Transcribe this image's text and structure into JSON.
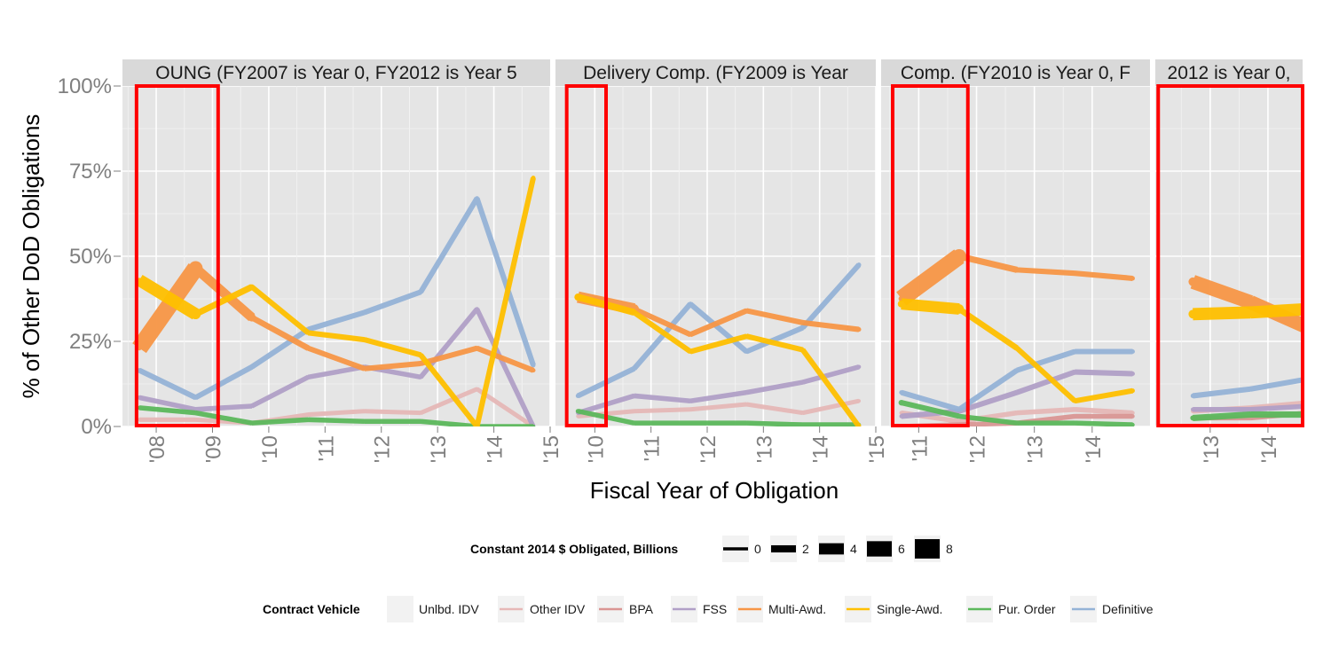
{
  "chart_data": {
    "type": "line",
    "ylabel": "% of  Other DoD  Obligations",
    "xlabel": "Fiscal Year of Obligation",
    "ylim": [
      0,
      1
    ],
    "y_ticks": [
      "0%",
      "25%",
      "50%",
      "75%",
      "100%"
    ],
    "grid": true,
    "legend_position": "bottom",
    "size_legend": {
      "title": "Constant 2014 $ Obligated, Billions",
      "values": [
        "0",
        "2",
        "4",
        "6",
        "8"
      ]
    },
    "color_legend": {
      "title": "Contract Vehicle",
      "entries": [
        {
          "name": "Unlbd. IDV",
          "color": "#f2f2f2"
        },
        {
          "name": "Other IDV",
          "color": "#e6b8b7"
        },
        {
          "name": "BPA",
          "color": "#da9694"
        },
        {
          "name": "FSS",
          "color": "#b1a0c7"
        },
        {
          "name": "Multi-Awd.",
          "color": "#f79646"
        },
        {
          "name": "Single-Awd.",
          "color": "#ffc000"
        },
        {
          "name": "Pur. Order",
          "color": "#5cb85c"
        },
        {
          "name": "Definitive",
          "color": "#95b3d7"
        }
      ]
    },
    "panels": [
      {
        "strip": "OUNG (FY2007 is Year 0, FY2012 is Year 5",
        "xlim": [
          2007.4,
          2015.0
        ],
        "x_ticks": [
          "'08",
          "'09",
          "'10",
          "'11",
          "'12",
          "'13",
          "'14",
          "'15"
        ],
        "x_tick_values": [
          2008,
          2009,
          2010,
          2011,
          2012,
          2013,
          2014,
          2015
        ],
        "highlight_x": [
          2007.65,
          2009.1
        ],
        "series": [
          {
            "name": "Other IDV",
            "x": [
              2007.7,
              2008.7,
              2009.7,
              2010.7,
              2011.7,
              2012.7,
              2013.7,
              2014.7
            ],
            "y": [
              0.02,
              0.02,
              0.01,
              0.035,
              0.045,
              0.04,
              0.11,
              0.0
            ],
            "w": [
              0.1,
              0.1,
              0.1,
              0.1,
              0.1,
              0.1,
              0.1,
              0.1
            ]
          },
          {
            "name": "FSS",
            "x": [
              2007.7,
              2008.7,
              2009.7,
              2010.7,
              2011.7,
              2012.7,
              2013.7,
              2014.7
            ],
            "y": [
              0.085,
              0.05,
              0.06,
              0.145,
              0.175,
              0.145,
              0.345,
              0.0
            ],
            "w": [
              0.2,
              0.2,
              0.2,
              0.2,
              0.2,
              0.2,
              0.2,
              0.2
            ]
          },
          {
            "name": "Definitive",
            "x": [
              2007.7,
              2008.7,
              2009.7,
              2010.7,
              2011.7,
              2012.7,
              2013.7,
              2014.7
            ],
            "y": [
              0.165,
              0.085,
              0.175,
              0.285,
              0.335,
              0.395,
              0.67,
              0.18
            ],
            "w": [
              0.3,
              0.3,
              0.3,
              0.3,
              0.3,
              0.3,
              0.3,
              0.3
            ]
          },
          {
            "name": "Pur. Order",
            "x": [
              2007.7,
              2008.7,
              2009.7,
              2010.7,
              2011.7,
              2012.7,
              2013.7,
              2014.7
            ],
            "y": [
              0.055,
              0.04,
              0.01,
              0.02,
              0.015,
              0.015,
              0.0,
              0.0
            ],
            "w": [
              0.2,
              0.2,
              0.2,
              0.2,
              0.2,
              0.2,
              0.2,
              0.2
            ]
          },
          {
            "name": "Multi-Awd.",
            "x": [
              2007.7,
              2008.7,
              2009.7,
              2010.7,
              2011.7,
              2012.7,
              2013.7,
              2014.7
            ],
            "y": [
              0.23,
              0.465,
              0.32,
              0.23,
              0.17,
              0.185,
              0.23,
              0.165
            ],
            "w": [
              0.3,
              2.8,
              1.2,
              0.4,
              0.3,
              0.3,
              0.3,
              0.3
            ]
          },
          {
            "name": "Single-Awd.",
            "x": [
              2007.7,
              2008.7,
              2009.7,
              2010.7,
              2011.7,
              2012.7,
              2013.7,
              2014.7
            ],
            "y": [
              0.43,
              0.33,
              0.41,
              0.275,
              0.255,
              0.21,
              0.0,
              0.73
            ],
            "w": [
              0.3,
              1.8,
              0.5,
              0.3,
              0.3,
              0.3,
              0.3,
              0.3
            ]
          }
        ]
      },
      {
        "strip": "Delivery Comp. (FY2009 is Year",
        "xlim": [
          2009.3,
          2015.0
        ],
        "x_ticks": [
          "'10",
          "'11",
          "'12",
          "'13",
          "'14",
          "'15"
        ],
        "x_tick_values": [
          2010,
          2011,
          2012,
          2013,
          2014,
          2015
        ],
        "highlight_x": [
          2009.5,
          2010.2
        ],
        "series": [
          {
            "name": "Other IDV",
            "x": [
              2009.7,
              2010.7,
              2011.7,
              2012.7,
              2013.7,
              2014.7
            ],
            "y": [
              0.03,
              0.045,
              0.05,
              0.065,
              0.04,
              0.075
            ],
            "w": [
              0.1,
              0.1,
              0.1,
              0.1,
              0.1,
              0.1
            ]
          },
          {
            "name": "FSS",
            "x": [
              2009.7,
              2010.7,
              2011.7,
              2012.7,
              2013.7,
              2014.7
            ],
            "y": [
              0.04,
              0.09,
              0.075,
              0.1,
              0.13,
              0.175
            ],
            "w": [
              0.2,
              0.2,
              0.2,
              0.2,
              0.2,
              0.2
            ]
          },
          {
            "name": "Definitive",
            "x": [
              2009.7,
              2010.7,
              2011.7,
              2012.7,
              2013.7,
              2014.7
            ],
            "y": [
              0.09,
              0.17,
              0.36,
              0.22,
              0.29,
              0.475
            ],
            "w": [
              0.3,
              0.3,
              0.3,
              0.3,
              0.3,
              0.3
            ]
          },
          {
            "name": "Pur. Order",
            "x": [
              2009.7,
              2010.7,
              2011.7,
              2012.7,
              2013.7,
              2014.7
            ],
            "y": [
              0.045,
              0.01,
              0.01,
              0.01,
              0.005,
              0.005
            ],
            "w": [
              0.3,
              0.2,
              0.2,
              0.2,
              0.2,
              0.2
            ]
          },
          {
            "name": "Multi-Awd.",
            "x": [
              2009.7,
              2010.7,
              2011.7,
              2012.7,
              2013.7,
              2014.7
            ],
            "y": [
              0.38,
              0.345,
              0.27,
              0.34,
              0.305,
              0.285
            ],
            "w": [
              0.8,
              1.6,
              0.3,
              0.3,
              0.3,
              0.3
            ]
          },
          {
            "name": "Single-Awd.",
            "x": [
              2009.7,
              2010.7,
              2011.7,
              2012.7,
              2013.7,
              2014.7
            ],
            "y": [
              0.38,
              0.335,
              0.22,
              0.265,
              0.225,
              0.0
            ],
            "w": [
              1.0,
              0.6,
              0.3,
              0.3,
              0.3,
              0.3
            ]
          }
        ]
      },
      {
        "strip": "Comp. (FY2010 is Year 0, F",
        "xlim": [
          2010.35,
          2015.0
        ],
        "x_ticks": [
          "'11",
          "'12",
          "'13",
          "'14"
        ],
        "x_tick_values": [
          2011,
          2012,
          2013,
          2014
        ],
        "highlight_x": [
          2010.55,
          2011.85
        ],
        "series": [
          {
            "name": "Other IDV",
            "x": [
              2010.7,
              2011.7,
              2012.7,
              2013.7,
              2014.7
            ],
            "y": [
              0.04,
              0.015,
              0.04,
              0.05,
              0.04
            ],
            "w": [
              0.2,
              0.2,
              0.2,
              0.2,
              0.2
            ]
          },
          {
            "name": "BPA",
            "x": [
              2010.7,
              2011.7,
              2012.7,
              2013.7,
              2014.7
            ],
            "y": [
              0.0,
              0.005,
              0.01,
              0.03,
              0.03
            ],
            "w": [
              0.2,
              0.2,
              0.2,
              0.2,
              0.2
            ]
          },
          {
            "name": "FSS",
            "x": [
              2010.7,
              2011.7,
              2012.7,
              2013.7,
              2014.7
            ],
            "y": [
              0.03,
              0.045,
              0.1,
              0.16,
              0.155
            ],
            "w": [
              0.2,
              0.3,
              0.3,
              0.3,
              0.3
            ]
          },
          {
            "name": "Definitive",
            "x": [
              2010.7,
              2011.7,
              2012.7,
              2013.7,
              2014.7
            ],
            "y": [
              0.1,
              0.05,
              0.165,
              0.22,
              0.22
            ],
            "w": [
              0.3,
              0.3,
              0.3,
              0.3,
              0.3
            ]
          },
          {
            "name": "Pur. Order",
            "x": [
              2010.7,
              2011.7,
              2012.7,
              2013.7,
              2014.7
            ],
            "y": [
              0.07,
              0.03,
              0.01,
              0.01,
              0.005
            ],
            "w": [
              0.6,
              0.3,
              0.2,
              0.2,
              0.2
            ]
          },
          {
            "name": "Multi-Awd.",
            "x": [
              2010.7,
              2011.7,
              2012.7,
              2013.7,
              2014.7
            ],
            "y": [
              0.375,
              0.5,
              0.46,
              0.45,
              0.435
            ],
            "w": [
              0.6,
              2.8,
              0.5,
              0.3,
              0.3
            ]
          },
          {
            "name": "Single-Awd.",
            "x": [
              2010.7,
              2011.7,
              2012.7,
              2013.7,
              2014.7
            ],
            "y": [
              0.36,
              0.345,
              0.23,
              0.075,
              0.105
            ],
            "w": [
              1.0,
              1.6,
              0.4,
              0.3,
              0.3
            ]
          }
        ]
      },
      {
        "strip": "2012 is Year 0,",
        "xlim": [
          2012.05,
          2014.6
        ],
        "x_ticks": [
          "'13",
          "'14"
        ],
        "x_tick_values": [
          2013,
          2014
        ],
        "highlight_x": [
          2012.1,
          2014.6
        ],
        "series": [
          {
            "name": "Other IDV",
            "x": [
              2012.7,
              2013.7,
              2014.7
            ],
            "y": [
              0.045,
              0.055,
              0.07
            ],
            "w": [
              0.2,
              0.2,
              0.2
            ]
          },
          {
            "name": "BPA",
            "x": [
              2012.7,
              2013.7,
              2014.7
            ],
            "y": [
              0.025,
              0.025,
              0.04
            ],
            "w": [
              0.2,
              0.2,
              0.2
            ]
          },
          {
            "name": "FSS",
            "x": [
              2012.7,
              2013.7,
              2014.7
            ],
            "y": [
              0.05,
              0.05,
              0.06
            ],
            "w": [
              0.2,
              0.2,
              0.2
            ]
          },
          {
            "name": "Definitive",
            "x": [
              2012.7,
              2013.7,
              2014.7
            ],
            "y": [
              0.09,
              0.11,
              0.14
            ],
            "w": [
              0.3,
              0.3,
              0.3
            ]
          },
          {
            "name": "Pur. Order",
            "x": [
              2012.7,
              2013.7,
              2014.7
            ],
            "y": [
              0.025,
              0.035,
              0.035
            ],
            "w": [
              0.5,
              0.5,
              0.5
            ]
          },
          {
            "name": "Multi-Awd.",
            "x": [
              2012.7,
              2013.7,
              2014.7
            ],
            "y": [
              0.425,
              0.365,
              0.29
            ],
            "w": [
              1.4,
              2.2,
              2.2
            ]
          },
          {
            "name": "Single-Awd.",
            "x": [
              2012.7,
              2013.7,
              2014.7
            ],
            "y": [
              0.33,
              0.335,
              0.345
            ],
            "w": [
              1.4,
              1.8,
              1.8
            ]
          }
        ]
      }
    ]
  }
}
